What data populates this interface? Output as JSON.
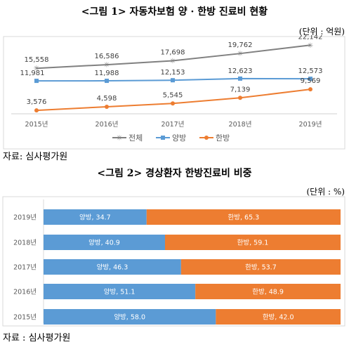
{
  "figure1": {
    "title": "<그림 1> 자동차보험 양 · 한방 진료비 현황",
    "unit": "(단위 : 억원)",
    "source": "자료: 심사평가원",
    "chart_data": {
      "type": "line",
      "categories": [
        "2015년",
        "2016년",
        "2017년",
        "2018년",
        "2019년"
      ],
      "series": [
        {
          "name": "전체",
          "color": "#808080",
          "marker": "asterisk",
          "values": [
            15558,
            16586,
            17698,
            19762,
            22142
          ],
          "labels": [
            "15,558",
            "16,586",
            "17,698",
            "19,762",
            "22,142"
          ]
        },
        {
          "name": "양방",
          "color": "#5b9bd5",
          "marker": "square",
          "values": [
            11981,
            11988,
            12153,
            12623,
            12573
          ],
          "labels": [
            "11,981",
            "11,988",
            "12,153",
            "12,623",
            "12,573"
          ]
        },
        {
          "name": "한방",
          "color": "#ed7d31",
          "marker": "circle",
          "values": [
            3576,
            4598,
            5545,
            7139,
            9569
          ],
          "labels": [
            "3,576",
            "4,598",
            "5,545",
            "7,139",
            "9,569"
          ]
        }
      ],
      "ylim": [
        0,
        25000
      ],
      "grid": false,
      "legend": "bottom"
    }
  },
  "figure2": {
    "title": "<그림 2> 경상환자 한방진료비 비중",
    "unit": "(단위 : %)",
    "source": "자료 : 심사평가원",
    "chart_data": {
      "type": "bar",
      "orientation": "horizontal-stacked-100",
      "categories": [
        "2019년",
        "2018년",
        "2017년",
        "2016년",
        "2015년"
      ],
      "series": [
        {
          "name": "양방",
          "color": "#5b9bd5",
          "values": [
            34.7,
            40.9,
            46.3,
            51.1,
            58.0
          ],
          "labels": [
            "양방, 34.7",
            "양방, 40.9",
            "양방, 46.3",
            "양방, 51.1",
            "양방, 58.0"
          ]
        },
        {
          "name": "한방",
          "color": "#ed7d31",
          "values": [
            65.3,
            59.1,
            53.7,
            48.9,
            42.0
          ],
          "labels": [
            "한방, 65.3",
            "한방, 59.1",
            "한방, 53.7",
            "한방, 48.9",
            "한방, 42.0"
          ]
        }
      ],
      "xlim": [
        0,
        100
      ]
    }
  }
}
